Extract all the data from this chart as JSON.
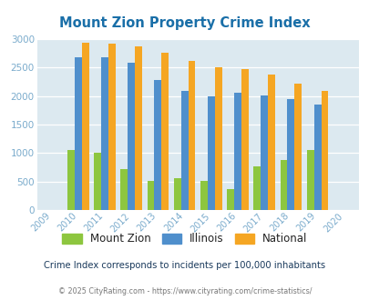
{
  "title": "Mount Zion Property Crime Index",
  "years": [
    2009,
    2010,
    2011,
    2012,
    2013,
    2014,
    2015,
    2016,
    2017,
    2018,
    2019,
    2020
  ],
  "mount_zion": [
    0,
    1050,
    1000,
    725,
    510,
    560,
    515,
    365,
    765,
    870,
    1050,
    0
  ],
  "illinois": [
    0,
    2675,
    2675,
    2590,
    2280,
    2090,
    2000,
    2055,
    2010,
    1945,
    1855,
    0
  ],
  "national": [
    0,
    2940,
    2920,
    2870,
    2755,
    2620,
    2510,
    2470,
    2370,
    2210,
    2095,
    0
  ],
  "bar_width": 0.27,
  "ylim": [
    0,
    3000
  ],
  "yticks": [
    0,
    500,
    1000,
    1500,
    2000,
    2500,
    3000
  ],
  "color_mount_zion": "#8dc63f",
  "color_illinois": "#4f8fcc",
  "color_national": "#f5a623",
  "bg_color": "#dce9f0",
  "title_color": "#1a6fa8",
  "subtitle": "Crime Index corresponds to incidents per 100,000 inhabitants",
  "footer": "© 2025 CityRating.com - https://www.cityrating.com/crime-statistics/",
  "subtitle_color": "#1a3a5c",
  "footer_color": "#777777",
  "legend_labels": [
    "Mount Zion",
    "Illinois",
    "National"
  ],
  "tick_color": "#7aabcc",
  "grid_color": "#c8dde8"
}
